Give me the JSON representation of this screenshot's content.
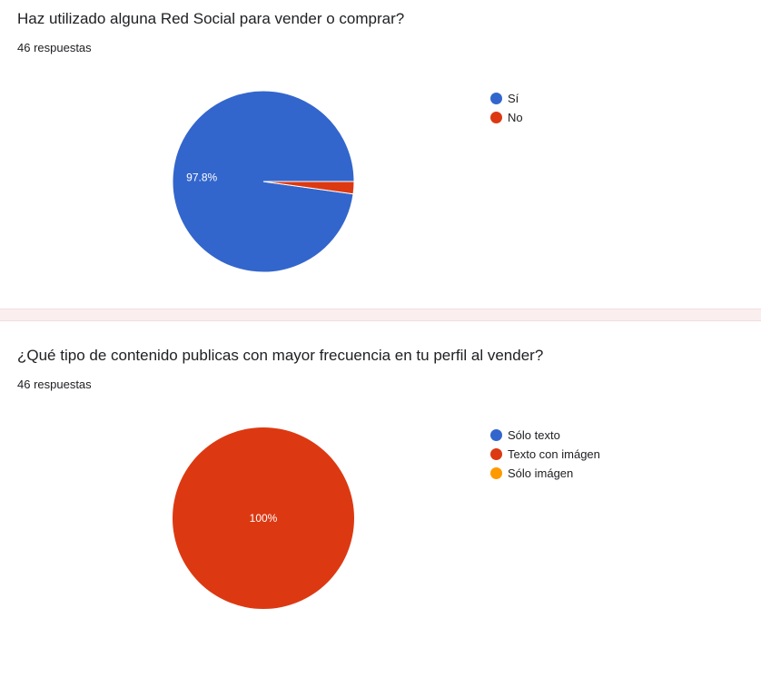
{
  "chart_data": [
    {
      "type": "pie",
      "title": "Haz utilizado alguna Red Social para vender o comprar?",
      "subtitle": "46 respuestas",
      "categories": [
        "Sí",
        "No"
      ],
      "values": [
        97.8,
        2.2
      ],
      "colors": [
        "#3366cc",
        "#dc3912"
      ],
      "data_labels": [
        "97.8%",
        ""
      ],
      "legend": "right"
    },
    {
      "type": "pie",
      "title": "¿Qué tipo de contenido publicas con mayor frecuencia en tu perfil al vender?",
      "subtitle": "46 respuestas",
      "categories": [
        "Sólo texto",
        "Texto con imágen",
        "Sólo imágen"
      ],
      "values": [
        0,
        100,
        0
      ],
      "colors": [
        "#3366cc",
        "#dc3912",
        "#ff9900"
      ],
      "data_labels": [
        "",
        "100%",
        ""
      ],
      "legend": "right"
    }
  ]
}
